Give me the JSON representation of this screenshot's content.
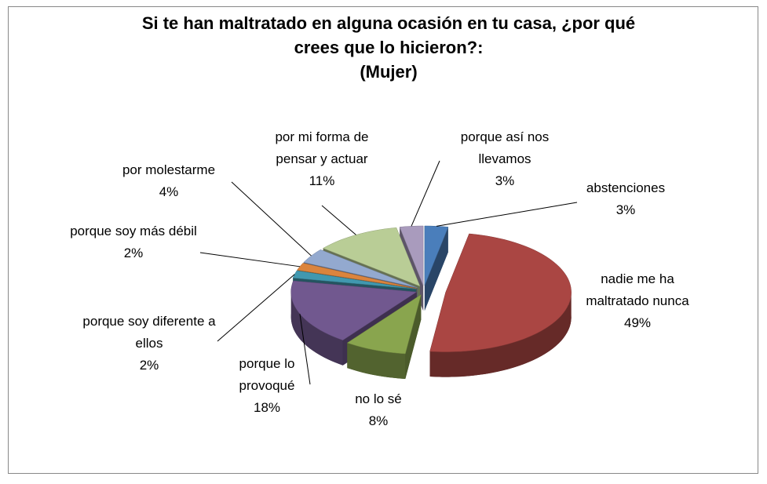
{
  "chart_data": {
    "type": "pie3d",
    "title": "Si te han maltratado en alguna ocasión en tu casa, ¿por qué crees que lo hicieron?:",
    "subtitle": "(Mujer)",
    "categories": [
      "abstenciones",
      "nadie me ha maltratado nunca",
      "no lo sé",
      "porque lo provoqué",
      "porque soy diferente a ellos",
      "porque soy más débil",
      "por molestarme",
      "por mi forma de pensar y actuar",
      "porque así nos llevamos"
    ],
    "values": [
      3,
      49,
      8,
      18,
      2,
      2,
      4,
      11,
      3
    ],
    "value_labels": [
      "3%",
      "49%",
      "8%",
      "18%",
      "2%",
      "2%",
      "4%",
      "11%",
      "3%"
    ],
    "colors": [
      "#4a7ebb",
      "#aa4643",
      "#89a54e",
      "#71588f",
      "#4198af",
      "#db843d",
      "#93a9cf",
      "#b9cd96",
      "#a99bbd"
    ]
  }
}
